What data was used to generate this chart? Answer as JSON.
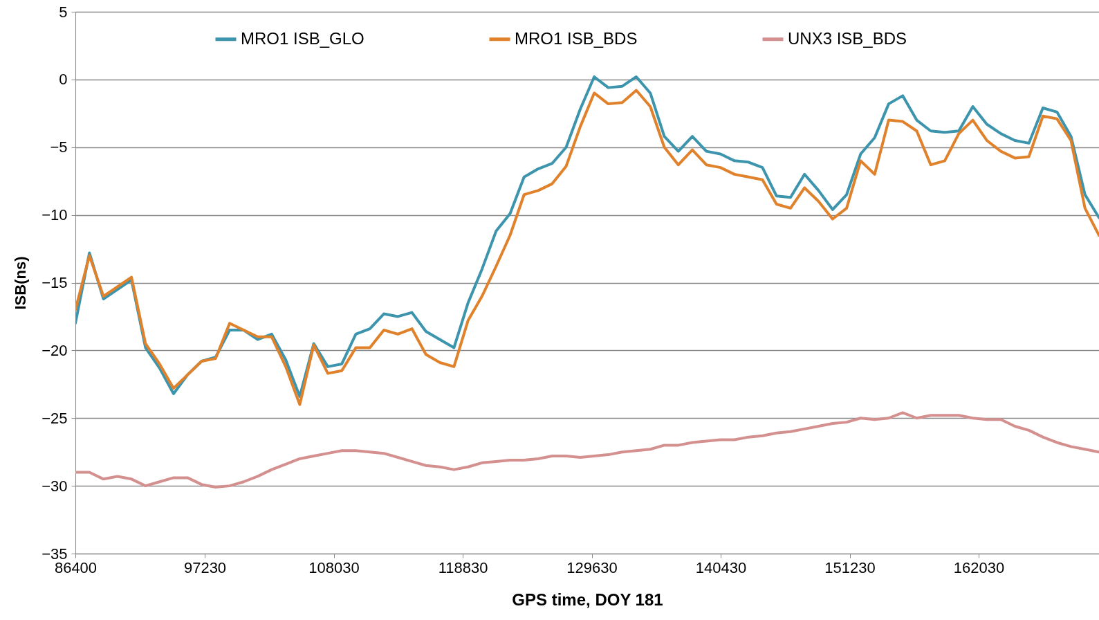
{
  "chart_data": {
    "type": "line",
    "xlabel": "GPS time, DOY 181",
    "ylabel": "ISB(ns)",
    "x": [
      86400,
      87574,
      88748,
      89922,
      91096,
      92270,
      93444,
      94618,
      95792,
      96966,
      98140,
      99314,
      100488,
      101662,
      102836,
      104010,
      105184,
      106358,
      107532,
      108706,
      109880,
      111054,
      112228,
      113402,
      114576,
      115750,
      116924,
      118098,
      119272,
      120446,
      121620,
      122794,
      123968,
      125142,
      126316,
      127490,
      128664,
      129838,
      131012,
      132186,
      133360,
      134534,
      135708,
      136882,
      138056,
      139230,
      140404,
      141578,
      142752,
      143926,
      145100,
      146274,
      147448,
      148622,
      149796,
      150970,
      152144,
      153318,
      154492,
      155666,
      156840,
      158014,
      159188,
      160362,
      161536,
      162710,
      163884,
      165058,
      166232,
      167406,
      168580,
      169754,
      170928,
      172102
    ],
    "series": [
      {
        "name": "MRO1 ISB_GLO",
        "color": "#3d94ad",
        "values": [
          -18,
          -12.8,
          -16.2,
          -15.5,
          -14.8,
          -19.8,
          -21.3,
          -23.2,
          -21.8,
          -20.8,
          -20.5,
          -18.5,
          -18.5,
          -19.2,
          -18.8,
          -20.7,
          -23.4,
          -19.5,
          -21.2,
          -21,
          -18.8,
          -18.4,
          -17.3,
          -17.5,
          -17.2,
          -18.6,
          -19.2,
          -19.8,
          -16.5,
          -14,
          -11.2,
          -9.9,
          -7.2,
          -6.6,
          -6.2,
          -5,
          -2.2,
          0.2,
          -0.6,
          -0.5,
          0.2,
          -1,
          -4.2,
          -5.3,
          -4.2,
          -5.3,
          -5.5,
          -6,
          -6.1,
          -6.5,
          -8.6,
          -8.7,
          -7,
          -8.2,
          -9.6,
          -8.5,
          -5.5,
          -4.3,
          -1.8,
          -1.2,
          -3,
          -3.8,
          -3.9,
          -3.8,
          -2,
          -3.3,
          -4,
          -4.5,
          -4.7,
          -2.1,
          -2.4,
          -4.2,
          -8.5,
          -10.2
        ]
      },
      {
        "name": "MRO1 ISB_BDS",
        "color": "#e0812b",
        "values": [
          -17,
          -13,
          -16,
          -15.3,
          -14.6,
          -19.5,
          -21,
          -22.8,
          -21.8,
          -20.8,
          -20.6,
          -18,
          -18.5,
          -19,
          -19,
          -21.2,
          -24,
          -19.6,
          -21.7,
          -21.5,
          -19.8,
          -19.8,
          -18.5,
          -18.8,
          -18.4,
          -20.3,
          -20.9,
          -21.2,
          -17.8,
          -16,
          -13.8,
          -11.5,
          -8.5,
          -8.2,
          -7.7,
          -6.4,
          -3.5,
          -1,
          -1.8,
          -1.7,
          -0.8,
          -2,
          -5,
          -6.3,
          -5.2,
          -6.3,
          -6.5,
          -7,
          -7.2,
          -7.4,
          -9.2,
          -9.5,
          -8,
          -9,
          -10.3,
          -9.5,
          -6,
          -7,
          -3,
          -3.1,
          -3.8,
          -6.3,
          -6,
          -4,
          -3,
          -4.5,
          -5.3,
          -5.8,
          -5.7,
          -2.7,
          -2.9,
          -4.5,
          -9.5,
          -11.5
        ]
      },
      {
        "name": "UNX3 ISB_BDS",
        "color": "#d4908f",
        "values": [
          -29,
          -29,
          -29.5,
          -29.3,
          -29.5,
          -30,
          -29.7,
          -29.4,
          -29.4,
          -29.9,
          -30.1,
          -30,
          -29.7,
          -29.3,
          -28.8,
          -28.4,
          -28,
          -27.8,
          -27.6,
          -27.4,
          -27.4,
          -27.5,
          -27.6,
          -27.9,
          -28.2,
          -28.5,
          -28.6,
          -28.8,
          -28.6,
          -28.3,
          -28.2,
          -28.1,
          -28.1,
          -28,
          -27.8,
          -27.8,
          -27.9,
          -27.8,
          -27.7,
          -27.5,
          -27.4,
          -27.3,
          -27,
          -27,
          -26.8,
          -26.7,
          -26.6,
          -26.6,
          -26.4,
          -26.3,
          -26.1,
          -26,
          -25.8,
          -25.6,
          -25.4,
          -25.3,
          -25,
          -25.1,
          -25,
          -24.6,
          -25,
          -24.8,
          -24.8,
          -24.8,
          -25,
          -25.1,
          -25.1,
          -25.6,
          -25.9,
          -26.4,
          -26.8,
          -27.1,
          -27.3,
          -27.5
        ]
      }
    ],
    "xlim": [
      86400,
      172102
    ],
    "xticks": [
      86400,
      97230,
      108030,
      118830,
      129630,
      140430,
      151230,
      162030
    ],
    "ylim": [
      -35,
      5
    ],
    "yticks": [
      -35,
      -30,
      -25,
      -20,
      -15,
      -10,
      -5,
      0,
      5
    ],
    "grid": "y",
    "legend": "top",
    "line_style": "solid",
    "marker": "none"
  }
}
